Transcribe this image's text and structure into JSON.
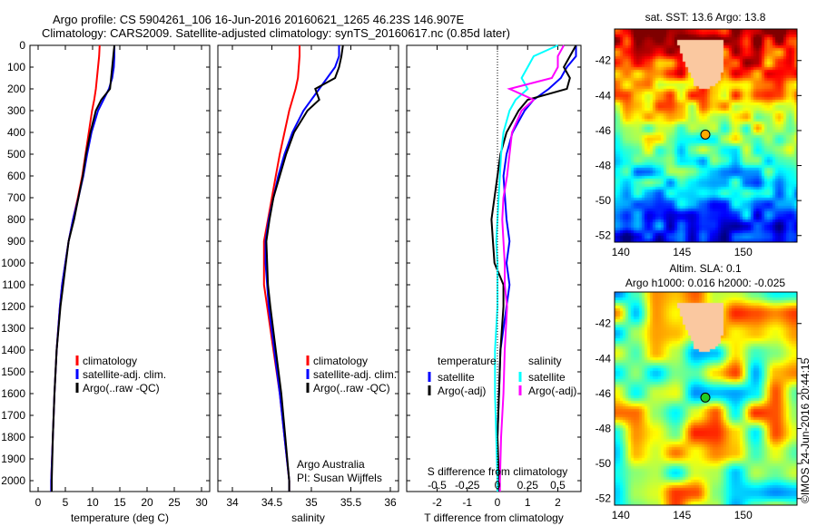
{
  "header": {
    "title1": "Argo profile: CS 5904261_106 16-Jun-2016 20160621_1265 46.23S 146.907E",
    "title2": "Climatology: CARS2009. Satellite-adjusted climatology: synTS_20160617.nc (0.85d later)"
  },
  "colors": {
    "climatology": "#ff0000",
    "satellite": "#0000ff",
    "argo": "#000000",
    "sal_satellite": "#00ffff",
    "sal_argo": "#ff00ff"
  },
  "chart_data": [
    {
      "type": "line",
      "xlabel": "temperature (deg C)",
      "xlim": [
        -1,
        31
      ],
      "ylim": [
        2050,
        0
      ],
      "xticks": [
        0,
        5,
        10,
        15,
        20,
        25,
        30
      ],
      "yticks": [
        0,
        100,
        200,
        300,
        400,
        500,
        600,
        700,
        800,
        900,
        1000,
        1100,
        1200,
        1300,
        1400,
        1500,
        1600,
        1700,
        1800,
        1900,
        2000
      ],
      "legend": [
        "climatology",
        "satellite-adj. clim.",
        "Argo(..raw -QC)"
      ],
      "depth": [
        0,
        50,
        100,
        150,
        200,
        250,
        300,
        400,
        500,
        600,
        700,
        800,
        900,
        1000,
        1100,
        1200,
        1400,
        1600,
        1800,
        2000,
        2050
      ],
      "series": [
        {
          "name": "climatology",
          "values": [
            11.3,
            11.2,
            11,
            10.8,
            10.6,
            10.3,
            9.9,
            9.3,
            8.7,
            8.1,
            7.3,
            6.4,
            5.6,
            5,
            4.4,
            4,
            3.4,
            3,
            2.7,
            2.4,
            2.4
          ]
        },
        {
          "name": "satellite-adj. clim.",
          "values": [
            14,
            14,
            13.9,
            13.6,
            13,
            12,
            11,
            9.8,
            9,
            8.3,
            7.4,
            6.4,
            5.6,
            5,
            4.4,
            4,
            3.4,
            3,
            2.7,
            2.4,
            2.4
          ]
        },
        {
          "name": "Argo(..raw -QC)",
          "values": [
            14,
            13.8,
            13.6,
            13.4,
            13.2,
            11.6,
            10.6,
            9.6,
            8.8,
            8.2,
            7.4,
            6.6,
            5.6,
            5.1,
            4.6,
            4.1,
            3.4,
            3,
            2.7,
            2.5,
            2.5
          ]
        }
      ]
    },
    {
      "type": "line",
      "xlabel": "salinity",
      "xlim": [
        33.8,
        36.1
      ],
      "ylim": [
        2050,
        0
      ],
      "xticks": [
        34,
        34.5,
        35,
        35.5,
        36
      ],
      "legend": [
        "climatology",
        "satellite-adj. clim.",
        "Argo(..raw -QC)"
      ],
      "annotation": [
        "Argo Australia",
        "PI: Susan Wijffels"
      ],
      "depth": [
        0,
        50,
        100,
        150,
        200,
        250,
        300,
        400,
        500,
        600,
        700,
        800,
        900,
        1000,
        1100,
        1200,
        1400,
        1600,
        1800,
        2000,
        2050
      ],
      "series": [
        {
          "name": "climatology",
          "values": [
            34.85,
            34.85,
            34.84,
            34.83,
            34.8,
            34.76,
            34.72,
            34.66,
            34.6,
            34.55,
            34.5,
            34.45,
            34.4,
            34.4,
            34.4,
            34.44,
            34.52,
            34.6,
            34.66,
            34.72,
            34.72
          ]
        },
        {
          "name": "satellite-adj. clim.",
          "values": [
            35.35,
            35.35,
            35.3,
            35.2,
            35.1,
            35,
            34.9,
            34.76,
            34.66,
            34.58,
            34.52,
            34.46,
            34.42,
            34.42,
            34.44,
            34.46,
            34.53,
            34.6,
            34.66,
            34.72,
            34.72
          ]
        },
        {
          "name": "Argo(..raw -QC)",
          "values": [
            35.4,
            35.38,
            35.35,
            35.3,
            35.05,
            35.1,
            34.95,
            34.78,
            34.68,
            34.6,
            34.52,
            34.47,
            34.43,
            34.44,
            34.45,
            34.48,
            34.55,
            34.62,
            34.67,
            34.72,
            34.72
          ]
        }
      ]
    },
    {
      "type": "line",
      "xlabel": "T difference from climatology",
      "xlabel2": "S difference from climatology",
      "xlim": [
        -3,
        3
      ],
      "xticks": [
        -2,
        -1,
        0,
        1,
        2
      ],
      "xticks2": [
        -0.5,
        -0.25,
        0,
        0.25,
        0.5
      ],
      "ylim": [
        2050,
        0
      ],
      "legend_headers": [
        "temperature",
        "salinity"
      ],
      "legend": [
        "satellite",
        "Argo(-adj)",
        "satellite",
        "Argo(-adj)"
      ],
      "depth": [
        0,
        50,
        100,
        150,
        200,
        250,
        300,
        400,
        500,
        600,
        700,
        800,
        900,
        1000,
        1100,
        1200,
        1400,
        1600,
        1800,
        2000,
        2050
      ],
      "series": [
        {
          "name": "T satellite",
          "values": [
            2.6,
            2.6,
            2.3,
            2.1,
            1.7,
            1.2,
            0.9,
            0.5,
            0.3,
            0.2,
            0.25,
            0.3,
            0.4,
            0.3,
            0.4,
            0.3,
            0.1,
            0.05,
            0,
            0,
            0
          ]
        },
        {
          "name": "T Argo(-adj)",
          "values": [
            2.6,
            2.4,
            2.2,
            2.4,
            2.3,
            1,
            0.7,
            0.3,
            0.1,
            0,
            -0.1,
            -0.2,
            -0.15,
            -0.1,
            0.2,
            0.2,
            0.1,
            0.05,
            0,
            0.05,
            0.05
          ]
        },
        {
          "name": "S satellite",
          "values": [
            0.5,
            0.3,
            0.25,
            0.2,
            0.25,
            0.15,
            0.1,
            0.05,
            0.03,
            0.02,
            0.01,
            0,
            -0.01,
            0,
            0,
            0,
            -0.02,
            -0.02,
            -0.01,
            0,
            0
          ]
        },
        {
          "name": "S Argo(-adj)",
          "values": [
            0.55,
            0.5,
            0.5,
            0.45,
            0.1,
            0.3,
            0.2,
            0.12,
            0.1,
            0.08,
            0.05,
            0.04,
            0.05,
            0.06,
            0.06,
            0.08,
            0.06,
            0.05,
            0.03,
            0.02,
            0.02
          ]
        }
      ]
    },
    {
      "type": "heatmap",
      "title": "sat. SST: 13.6 Argo: 13.8",
      "xticks": [
        140,
        145,
        150
      ],
      "yticks": [
        -42,
        -44,
        -46,
        -48,
        -50,
        -52
      ],
      "xlim": [
        139.5,
        154.5
      ],
      "ylim": [
        -52.2,
        -40.2
      ],
      "marker": [
        146.907,
        -46.23
      ]
    },
    {
      "type": "heatmap",
      "title": "Altim. SLA: 0.1",
      "subtitle": "Argo h1000: 0.016 h2000: -0.025",
      "xticks": [
        140,
        145,
        150
      ],
      "yticks": [
        -42,
        -44,
        -46,
        -48,
        -50,
        -52
      ],
      "xlim": [
        139.5,
        154.5
      ],
      "ylim": [
        -52.2,
        -40.2
      ],
      "marker": [
        146.907,
        -46.23
      ]
    }
  ],
  "footer": {
    "stamp": "©IMOS 24-Jun-2016 20:44:15"
  }
}
